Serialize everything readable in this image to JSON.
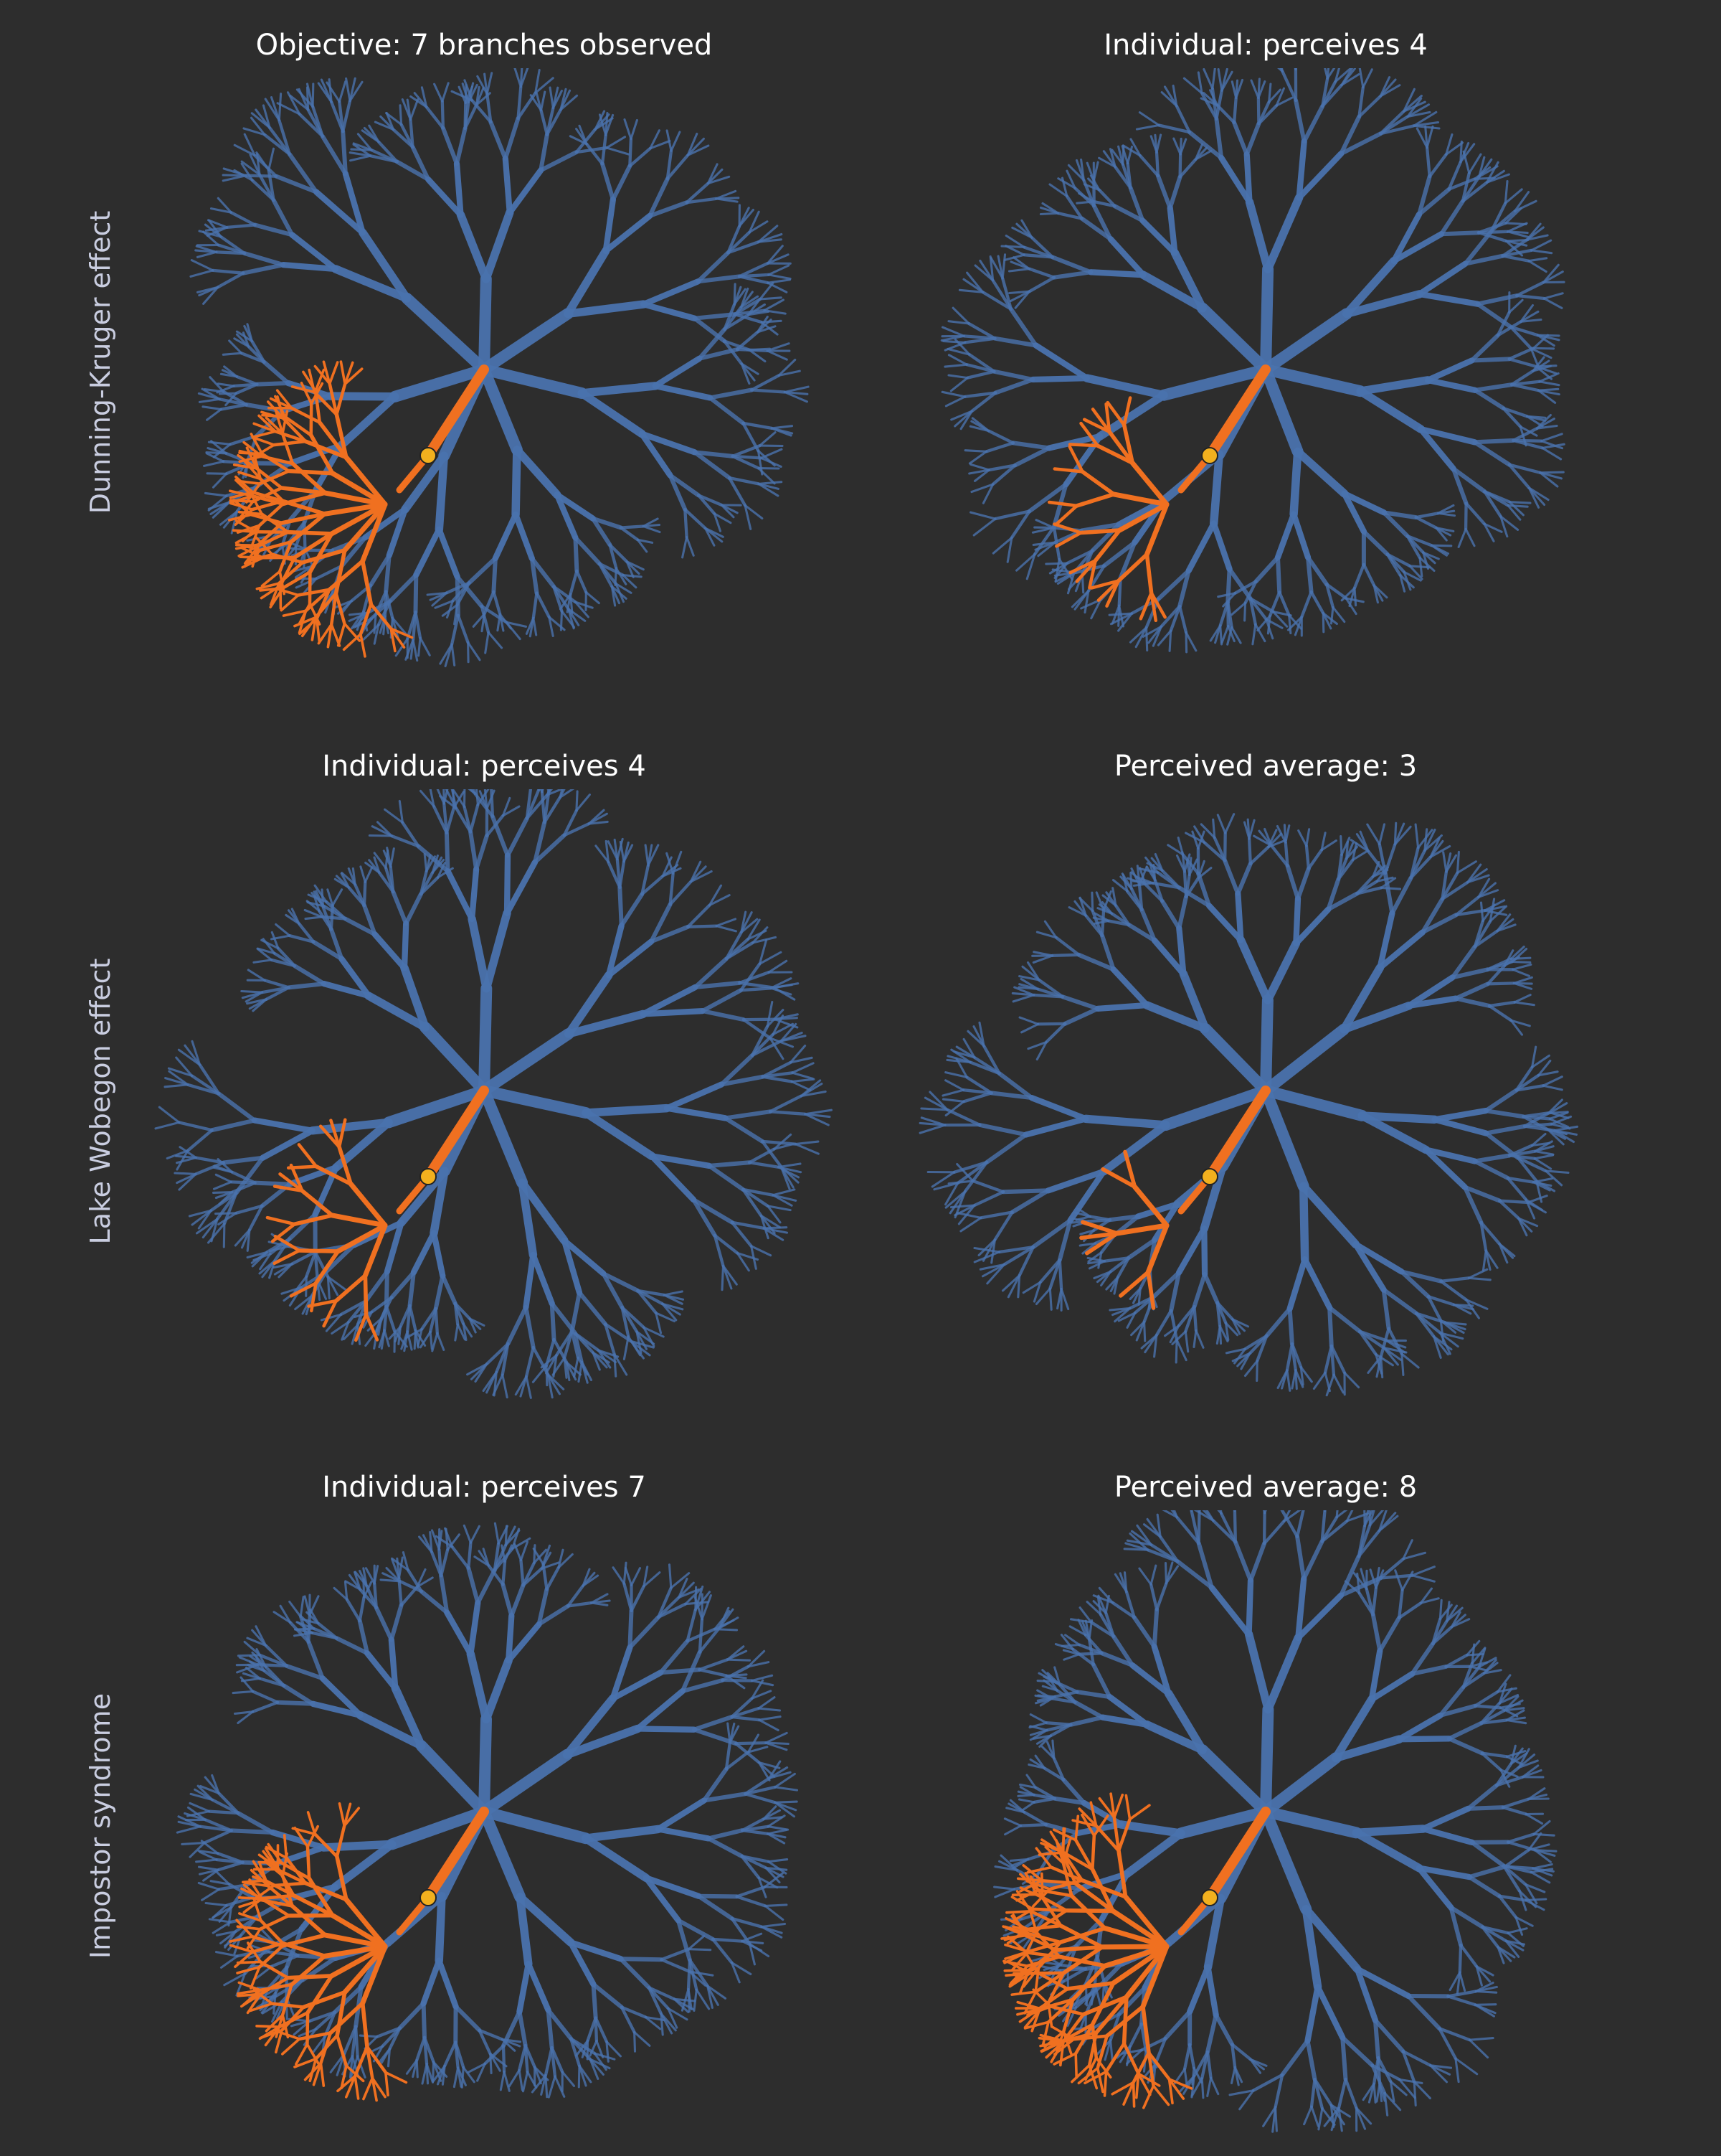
{
  "colors": {
    "background": "#2d2d2d",
    "tree": "#4a72ad",
    "highlight": "#f07020",
    "observer": "#f2b01e",
    "row_label": "#c9cde0",
    "title": "#ffffff"
  },
  "rows": [
    {
      "label": "Dunning-Kruger effect",
      "panels": [
        {
          "title": "Objective: 7 branches observed",
          "perceived_branches": 7,
          "mode": "full"
        },
        {
          "title": "Individual: perceives 4",
          "perceived_branches": 4,
          "mode": "reduced"
        }
      ]
    },
    {
      "label": "Lake Wobegon effect",
      "panels": [
        {
          "title": "Individual: perceives 4",
          "perceived_branches": 4,
          "mode": "reduced"
        },
        {
          "title": "Perceived average: 3",
          "perceived_branches": 3,
          "mode": "tiny"
        }
      ]
    },
    {
      "label": "Impostor syndrome",
      "panels": [
        {
          "title": "Individual: perceives 7",
          "perceived_branches": 7,
          "mode": "full"
        },
        {
          "title": "Perceived average: 8",
          "perceived_branches": 8,
          "mode": "large"
        }
      ]
    }
  ]
}
